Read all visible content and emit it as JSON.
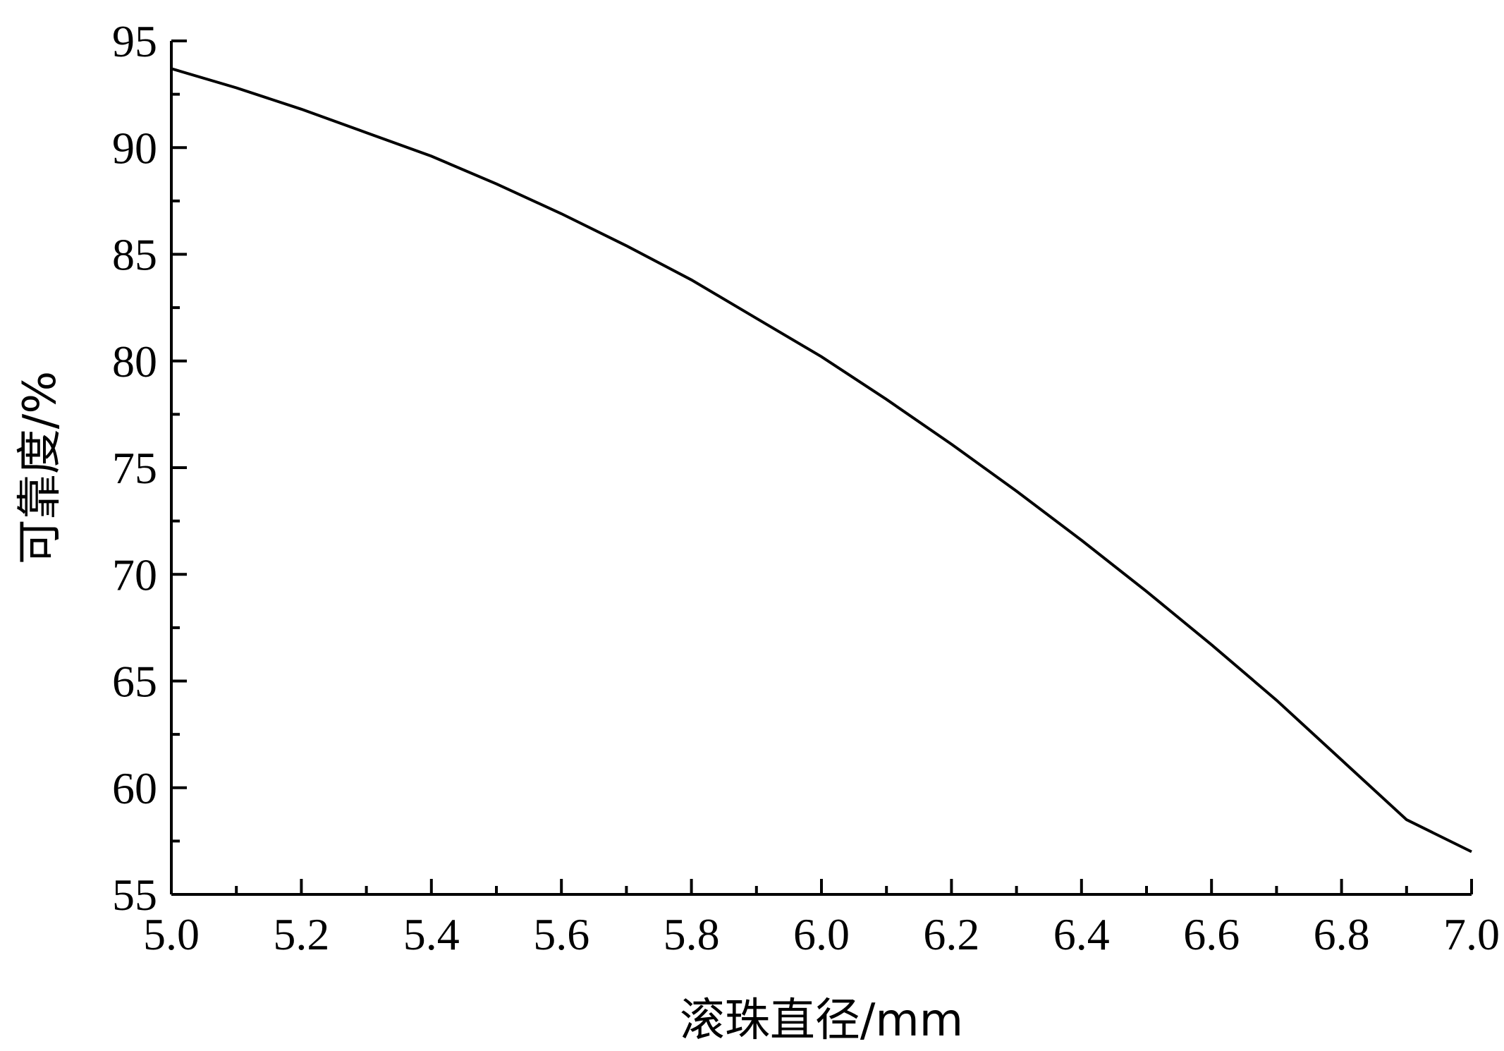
{
  "chart_data": {
    "type": "line",
    "xlabel": "滚珠直径/mm",
    "ylabel": "可靠度/%",
    "xlim": [
      5.0,
      7.0
    ],
    "ylim": [
      55,
      95
    ],
    "x_ticks": [
      "5.0",
      "5.2",
      "5.4",
      "5.6",
      "5.8",
      "6.0",
      "6.2",
      "6.4",
      "6.6",
      "6.8",
      "7.0"
    ],
    "y_ticks": [
      "55",
      "60",
      "65",
      "70",
      "75",
      "80",
      "85",
      "90",
      "95"
    ],
    "grid": false,
    "legend": false,
    "series": [
      {
        "x": [
          5.0,
          5.1,
          5.2,
          5.3,
          5.4,
          5.5,
          5.6,
          5.7,
          5.8,
          5.9,
          6.0,
          6.1,
          6.2,
          6.3,
          6.4,
          6.5,
          6.6,
          6.7,
          6.8,
          6.9,
          7.0
        ],
        "values": [
          93.7,
          92.8,
          91.8,
          90.7,
          89.6,
          88.3,
          86.9,
          85.4,
          83.8,
          82.0,
          80.2,
          78.2,
          76.1,
          73.9,
          71.6,
          69.2,
          66.7,
          64.1,
          61.3,
          58.5,
          57.0
        ]
      }
    ],
    "colors": {
      "line": "#000000",
      "axis": "#000000"
    }
  }
}
